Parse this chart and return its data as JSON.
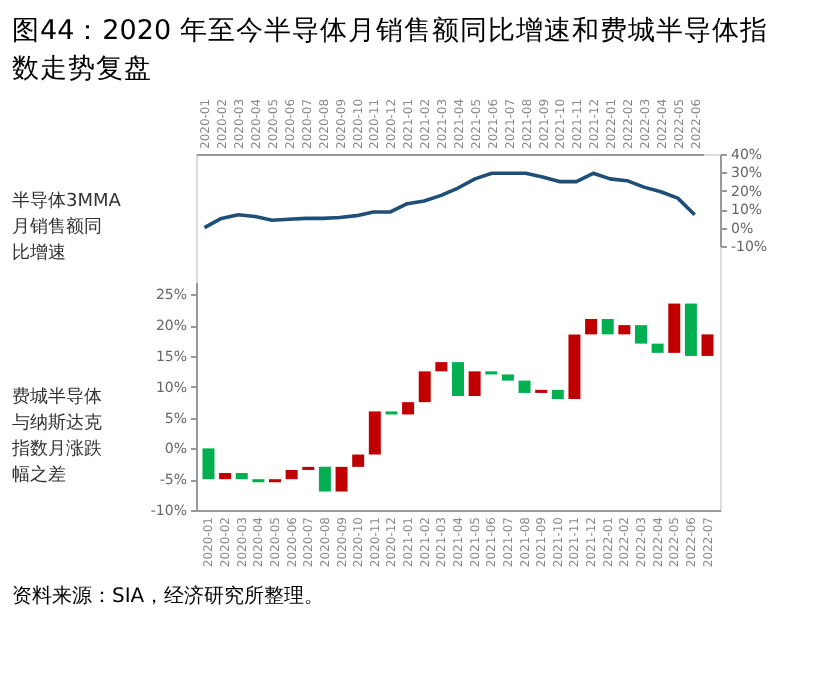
{
  "chart_data": [
    {
      "type": "line",
      "title": "图44：2020 年至今半导体月销售额同比增速和费城半导体指数走势复盘",
      "ylabel": "半导体3MMA月销售额同比增速",
      "categories": [
        "2020-01",
        "2020-02",
        "2020-03",
        "2020-04",
        "2020-05",
        "2020-06",
        "2020-07",
        "2020-08",
        "2020-09",
        "2020-10",
        "2020-11",
        "2020-12",
        "2021-01",
        "2021-02",
        "2021-03",
        "2021-04",
        "2021-05",
        "2021-06",
        "2021-07",
        "2021-08",
        "2021-09",
        "2021-10",
        "2021-11",
        "2021-12",
        "2022-01",
        "2022-02",
        "2022-03",
        "2022-04",
        "2022-05",
        "2022-06"
      ],
      "series": [
        {
          "color": "#1f4e79",
          "values": [
            0,
            5,
            7,
            6,
            4,
            4.5,
            5,
            5,
            5.5,
            6.5,
            8.5,
            8.5,
            13,
            14.5,
            17.5,
            21.5,
            26.5,
            29.5,
            29.5,
            29.5,
            27.5,
            25,
            25,
            29.5,
            26.5,
            25.5,
            22,
            19.5,
            16,
            7
          ]
        }
      ],
      "ylim": [
        -10,
        40
      ],
      "yticks": [
        {
          "value": -10,
          "label": "-10%"
        },
        {
          "value": 0,
          "label": "0%"
        },
        {
          "value": 10,
          "label": "10%"
        },
        {
          "value": 20,
          "label": "20%"
        },
        {
          "value": 30,
          "label": "30%"
        },
        {
          "value": 40,
          "label": "40%"
        }
      ],
      "grid": false,
      "marker": "none",
      "line_style": "solid"
    },
    {
      "type": "bar",
      "ylabel": "费城半导体与纳斯达克指数月涨跌幅之差",
      "annotations": [
        "资料来源：SIA，经济研究所整理。"
      ],
      "categories": [
        "2020-01",
        "2020-02",
        "2020-03",
        "2020-04",
        "2020-05",
        "2020-06",
        "2020-07",
        "2020-08",
        "2020-09",
        "2020-10",
        "2020-11",
        "2020-12",
        "2021-01",
        "2021-02",
        "2021-03",
        "2021-04",
        "2021-05",
        "2021-06",
        "2021-07",
        "2021-08",
        "2021-09",
        "2021-10",
        "2021-11",
        "2021-12",
        "2022-01",
        "2022-02",
        "2022-03",
        "2022-04",
        "2022-05",
        "2022-06",
        "2022-07"
      ],
      "base": [
        0,
        -5,
        -4,
        -5,
        -5.5,
        -5,
        -3.5,
        -3,
        -7,
        -3,
        -1,
        6,
        5.5,
        7.5,
        12.5,
        14,
        8.5,
        12.5,
        12,
        11,
        9,
        9.5,
        8,
        18.5,
        21,
        18.5,
        20,
        17,
        15.5,
        23.5,
        15
      ],
      "values": [
        -5,
        1,
        -1,
        -0.5,
        0.5,
        1.5,
        0.5,
        -4,
        4,
        2,
        7,
        -0.5,
        2,
        5,
        1.5,
        -5.5,
        4,
        -0.5,
        -1,
        -2,
        0.5,
        -1.5,
        10.5,
        2.5,
        -2.5,
        1.5,
        -3,
        -1.5,
        8,
        -8.5,
        3.5
      ],
      "colors": [
        "#00b050",
        "#c00000",
        "#00b050",
        "#00b050",
        "#c00000",
        "#c00000",
        "#c00000",
        "#00b050",
        "#c00000",
        "#c00000",
        "#c00000",
        "#00b050",
        "#c00000",
        "#c00000",
        "#c00000",
        "#00b050",
        "#c00000",
        "#00b050",
        "#00b050",
        "#00b050",
        "#c00000",
        "#00b050",
        "#c00000",
        "#c00000",
        "#00b050",
        "#c00000",
        "#00b050",
        "#00b050",
        "#c00000",
        "#00b050",
        "#c00000"
      ],
      "ylim": [
        -10,
        27
      ],
      "yticks": [
        {
          "value": -10,
          "label": "-10%"
        },
        {
          "value": -5,
          "label": "-5%"
        },
        {
          "value": 0,
          "label": "0%"
        },
        {
          "value": 5,
          "label": "5%"
        },
        {
          "value": 10,
          "label": "10%"
        },
        {
          "value": 15,
          "label": "15%"
        },
        {
          "value": 20,
          "label": "20%"
        },
        {
          "value": 25,
          "label": "25%"
        }
      ],
      "grid": false
    }
  ]
}
